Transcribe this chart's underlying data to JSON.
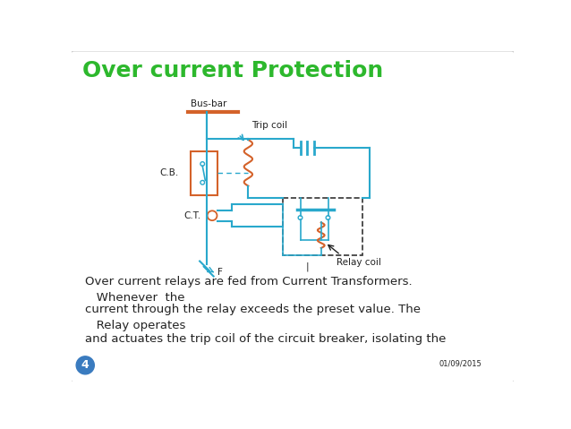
{
  "title": "Over current Protection",
  "title_color": "#2db82d",
  "title_fontsize": 18,
  "bg_color": "#ffffff",
  "circuit_color": "#29a8cc",
  "orange_color": "#d4622a",
  "text_color": "#222222",
  "body_text1": "Over current relays are fed from Current Transformers.\n   Whenever  the",
  "body_text2": "current through the relay exceeds the preset value. The\n   Relay operates",
  "body_text3": "and actuates the trip coil of the circuit breaker, isolating the",
  "date_text": "01/09/2015",
  "slide_num": "4",
  "busbar_label": "Bus-bar",
  "cb_label": "C.B.",
  "ct_label": "C.T.",
  "f_label": "F",
  "trip_coil_label": "Trip coil",
  "relay_coil_label": "Relay coil",
  "border_color": "#cccccc",
  "slide_circle_color": "#3a7bbf"
}
